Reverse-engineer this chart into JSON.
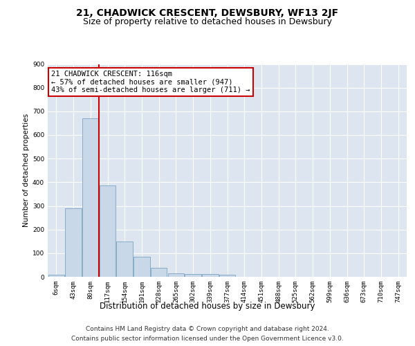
{
  "title": "21, CHADWICK CRESCENT, DEWSBURY, WF13 2JF",
  "subtitle": "Size of property relative to detached houses in Dewsbury",
  "xlabel": "Distribution of detached houses by size in Dewsbury",
  "ylabel": "Number of detached properties",
  "bar_labels": [
    "6sqm",
    "43sqm",
    "80sqm",
    "117sqm",
    "154sqm",
    "191sqm",
    "228sqm",
    "265sqm",
    "302sqm",
    "339sqm",
    "377sqm",
    "414sqm",
    "451sqm",
    "488sqm",
    "525sqm",
    "562sqm",
    "599sqm",
    "636sqm",
    "673sqm",
    "710sqm",
    "747sqm"
  ],
  "bar_values": [
    8,
    290,
    670,
    385,
    150,
    85,
    38,
    14,
    13,
    11,
    9,
    0,
    0,
    0,
    0,
    0,
    0,
    0,
    0,
    0,
    0
  ],
  "bar_color": "#c8d8e8",
  "bar_edge_color": "#7ba3c0",
  "background_color": "#dde6f0",
  "vline_color": "#cc0000",
  "annotation_text": "21 CHADWICK CRESCENT: 116sqm\n← 57% of detached houses are smaller (947)\n43% of semi-detached houses are larger (711) →",
  "annotation_box_color": "white",
  "annotation_box_edge": "#cc0000",
  "ylim": [
    0,
    900
  ],
  "yticks": [
    0,
    100,
    200,
    300,
    400,
    500,
    600,
    700,
    800,
    900
  ],
  "footer_line1": "Contains HM Land Registry data © Crown copyright and database right 2024.",
  "footer_line2": "Contains public sector information licensed under the Open Government Licence v3.0.",
  "title_fontsize": 10,
  "subtitle_fontsize": 9,
  "xlabel_fontsize": 8.5,
  "ylabel_fontsize": 7.5,
  "tick_fontsize": 6.5,
  "footer_fontsize": 6.5,
  "annotation_fontsize": 7.5
}
